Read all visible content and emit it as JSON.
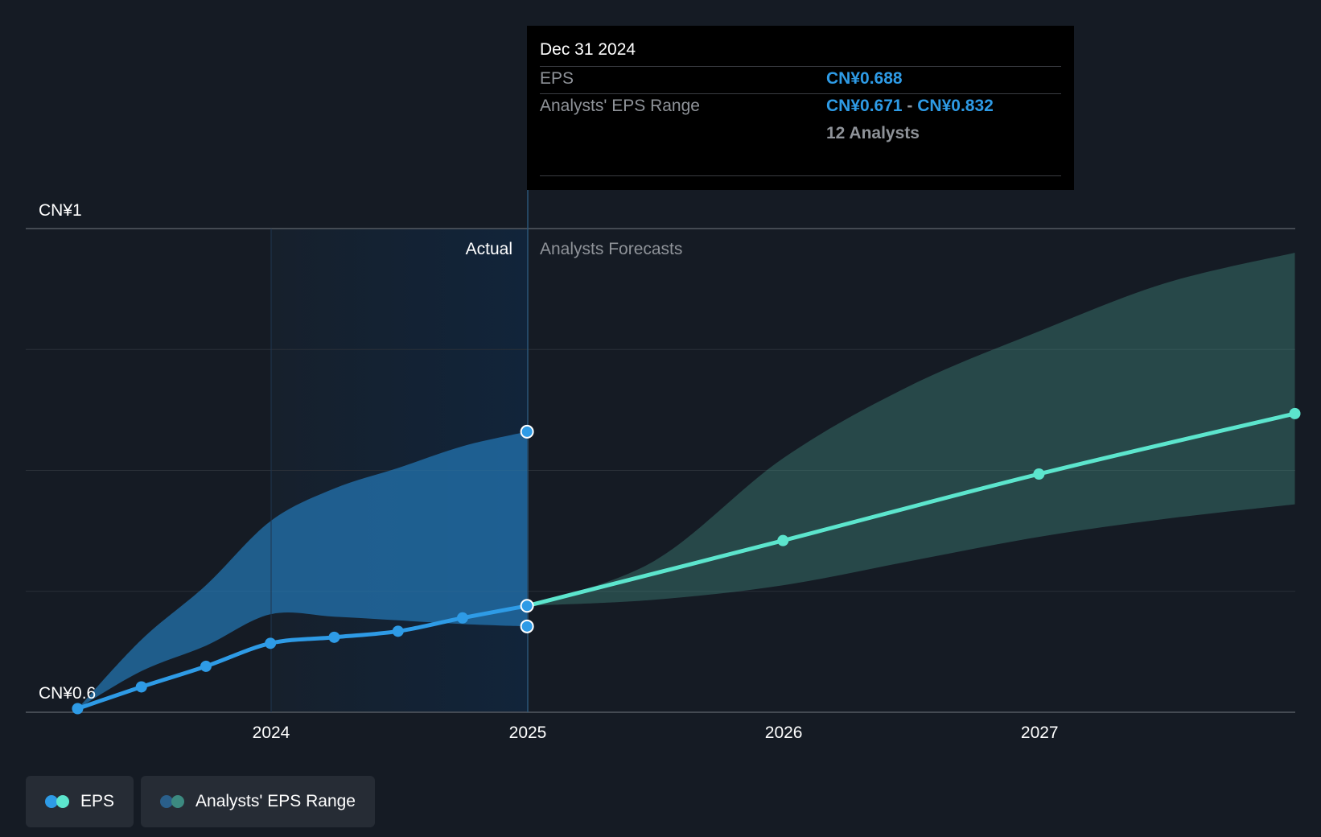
{
  "chart_data": {
    "type": "line",
    "y_axis": {
      "top_label": "CN¥1",
      "bottom_label": "CN¥0.6",
      "ylim": [
        0.6,
        1.0
      ]
    },
    "x_axis": {
      "ticks": [
        "2024",
        "2025",
        "2026",
        "2027"
      ]
    },
    "sections": {
      "actual_label": "Actual",
      "forecast_label": "Analysts Forecasts"
    },
    "series": [
      {
        "name": "EPS",
        "kind": "actual",
        "color": "#2e9be6",
        "points": [
          {
            "x": "2023-03-31",
            "y": 0.603
          },
          {
            "x": "2023-06-30",
            "y": 0.621
          },
          {
            "x": "2023-09-30",
            "y": 0.638
          },
          {
            "x": "2023-12-31",
            "y": 0.657
          },
          {
            "x": "2024-03-31",
            "y": 0.662
          },
          {
            "x": "2024-06-30",
            "y": 0.667
          },
          {
            "x": "2024-09-30",
            "y": 0.678
          },
          {
            "x": "2024-12-31",
            "y": 0.688
          }
        ]
      },
      {
        "name": "EPS",
        "kind": "forecast",
        "color": "#5ce5cd",
        "points": [
          {
            "x": "2024-12-31",
            "y": 0.688
          },
          {
            "x": "2025-12-31",
            "y": 0.742
          },
          {
            "x": "2026-12-31",
            "y": 0.797
          },
          {
            "x": "2027-12-31",
            "y": 0.847
          }
        ]
      }
    ],
    "ranges": [
      {
        "name": "Analysts' EPS Range",
        "kind": "actual",
        "color": "#2e9be6",
        "points": [
          {
            "x": "2023-03-31",
            "low": 0.603,
            "high": 0.603
          },
          {
            "x": "2023-06-30",
            "low": 0.634,
            "high": 0.66
          },
          {
            "x": "2023-09-30",
            "low": 0.655,
            "high": 0.705
          },
          {
            "x": "2023-12-31",
            "low": 0.681,
            "high": 0.758
          },
          {
            "x": "2024-03-31",
            "low": 0.679,
            "high": 0.785
          },
          {
            "x": "2024-06-30",
            "low": 0.676,
            "high": 0.802
          },
          {
            "x": "2024-09-30",
            "low": 0.673,
            "high": 0.82
          },
          {
            "x": "2024-12-31",
            "low": 0.671,
            "high": 0.832
          }
        ]
      },
      {
        "name": "Analysts' EPS Range",
        "kind": "forecast",
        "color": "#5ce5cd",
        "points": [
          {
            "x": "2024-12-31",
            "low": 0.688,
            "high": 0.688
          },
          {
            "x": "2025-06-30",
            "low": 0.693,
            "high": 0.725
          },
          {
            "x": "2025-12-31",
            "low": 0.705,
            "high": 0.81
          },
          {
            "x": "2026-06-30",
            "low": 0.725,
            "high": 0.87
          },
          {
            "x": "2026-12-31",
            "low": 0.745,
            "high": 0.915
          },
          {
            "x": "2027-06-30",
            "low": 0.76,
            "high": 0.955
          },
          {
            "x": "2027-12-31",
            "low": 0.772,
            "high": 0.98
          }
        ]
      }
    ],
    "range_markers": [
      {
        "x": "2024-12-31",
        "y": 0.832
      },
      {
        "x": "2024-12-31",
        "y": 0.671
      }
    ],
    "grid": true
  },
  "tooltip": {
    "date": "Dec 31 2024",
    "eps_label": "EPS",
    "eps_value": "CN¥0.688",
    "range_label": "Analysts' EPS Range",
    "range_low": "CN¥0.671",
    "range_separator": "-",
    "range_high": "CN¥0.832",
    "analysts": "12 Analysts"
  },
  "legend": {
    "items": [
      {
        "label": "EPS",
        "colors": [
          "#2e9be6",
          "#5ce5cd"
        ]
      },
      {
        "label": "Analysts' EPS Range",
        "colors": [
          "#2a5f8a",
          "#3c8a80"
        ]
      }
    ]
  }
}
